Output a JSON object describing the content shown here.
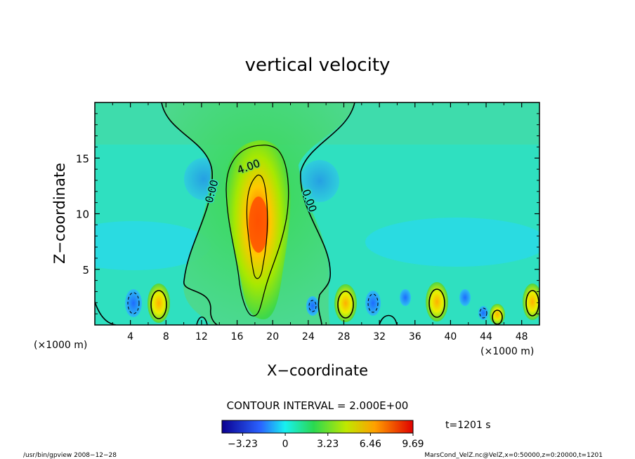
{
  "chart_data": {
    "type": "heatmap",
    "title": "vertical velocity",
    "xlabel": "X−coordinate",
    "ylabel": "Z−coordinate",
    "x_unit": "(×1000 m)",
    "xlim": [
      0,
      50
    ],
    "ylim": [
      0,
      20
    ],
    "x_ticks": [
      "4",
      "8",
      "12",
      "16",
      "20",
      "24",
      "28",
      "32",
      "36",
      "40",
      "44",
      "48"
    ],
    "y_ticks": [
      "5",
      "10",
      "15"
    ],
    "contour_interval_text": "CONTOUR INTERVAL = 2.000E+00",
    "contour_labels": [
      "0.00",
      "4.00",
      "0.00"
    ],
    "colorbar_ticks": [
      "−3.23",
      "0",
      "3.23",
      "6.46",
      "9.69"
    ],
    "colorbar_range": [
      -4.8,
      9.69
    ],
    "time_text": "t=1201 s",
    "grid": false,
    "colors": {
      "min": "#0b0090",
      "neg": "#3aa8ff",
      "zero": "#1fe0a8",
      "low": "#3cd84c",
      "mid": "#f0f000",
      "high": "#ff7a00",
      "max": "#e80000"
    }
  },
  "footer": {
    "left": "/usr/bin/gpview   2008−12−28",
    "right": "MarsCond_VelZ.nc@VelZ,x=0:50000,z=0:20000,t=1201"
  }
}
